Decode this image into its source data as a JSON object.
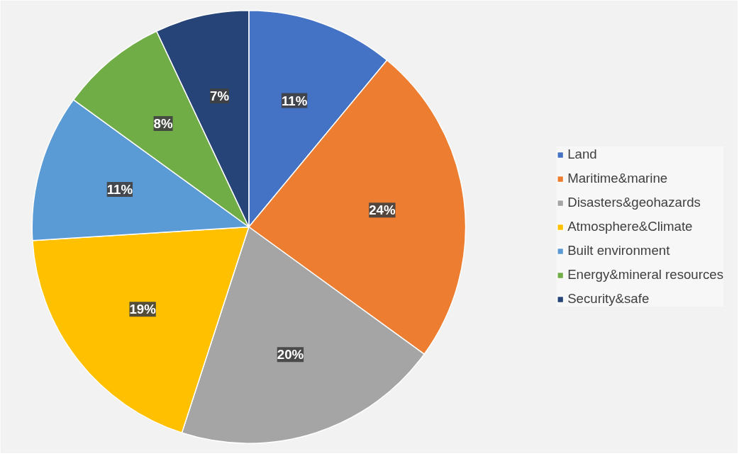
{
  "chart_data": {
    "type": "pie",
    "categories": [
      "Land",
      "Maritime&marine",
      "Disasters&geohazards",
      "Atmosphere&Climate",
      "Built environment",
      "Energy&mineral resources",
      "Security&safe"
    ],
    "values": [
      11,
      24,
      20,
      19,
      11,
      8,
      7
    ],
    "colors": [
      "#4472c4",
      "#ed7d31",
      "#a5a5a5",
      "#ffc000",
      "#5b9bd5",
      "#70ad47",
      "#264478"
    ],
    "value_labels": [
      "11%",
      "24%",
      "20%",
      "19%",
      "11%",
      "8%",
      "7%"
    ],
    "legend": "right"
  }
}
